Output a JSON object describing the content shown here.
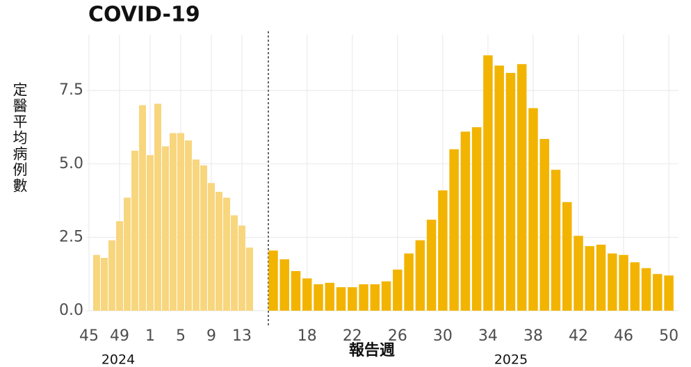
{
  "chart_data": [
    {
      "type": "bar",
      "title": "COVID-19",
      "y_label": "定醫平均病例數",
      "year": "2024",
      "categories": [
        45,
        null,
        null,
        null,
        49,
        null,
        null,
        null,
        1,
        null,
        null,
        null,
        5,
        null,
        null,
        null,
        9,
        null,
        null,
        null,
        13,
        null
      ],
      "values": [
        null,
        1.9,
        1.8,
        2.4,
        3.05,
        3.85,
        5.45,
        7.0,
        5.3,
        7.05,
        5.6,
        6.05,
        6.05,
        5.8,
        5.15,
        4.95,
        4.35,
        4.05,
        3.85,
        3.25,
        2.9,
        2.15
      ],
      "color": "#f8d67e",
      "ylim": [
        0,
        9.4
      ],
      "yticks": [
        {
          "value": 0,
          "label": "0.0"
        },
        {
          "value": 2.5,
          "label": "2.5"
        },
        {
          "value": 5,
          "label": "5.0"
        },
        {
          "value": 7.5,
          "label": "7.5"
        }
      ],
      "grid": true
    },
    {
      "type": "bar",
      "x_label": "報告週",
      "year": "2025",
      "categories": [
        null,
        null,
        null,
        18,
        null,
        null,
        null,
        22,
        null,
        null,
        null,
        26,
        null,
        null,
        null,
        30,
        null,
        null,
        null,
        34,
        null,
        null,
        null,
        38,
        null,
        null,
        null,
        42,
        null,
        null,
        null,
        46,
        null,
        null,
        null,
        50
      ],
      "values": [
        2.05,
        1.75,
        1.35,
        1.1,
        0.9,
        0.95,
        0.8,
        0.8,
        0.9,
        0.9,
        1.0,
        1.4,
        1.95,
        2.4,
        3.1,
        4.1,
        5.5,
        6.1,
        6.25,
        8.7,
        8.35,
        8.1,
        8.4,
        6.9,
        5.85,
        4.8,
        3.7,
        2.55,
        2.2,
        2.25,
        1.95,
        1.9,
        1.65,
        1.45,
        1.25,
        1.2
      ],
      "color": "#f2b400",
      "ylim": [
        0,
        9.4
      ],
      "grid": true
    }
  ]
}
